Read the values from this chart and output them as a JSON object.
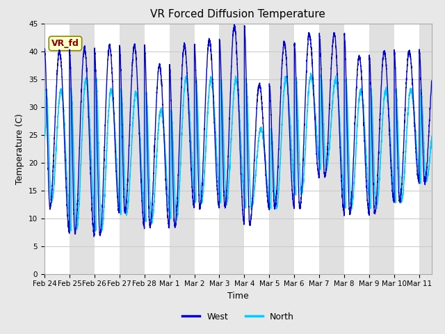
{
  "title": "VR Forced Diffusion Temperature",
  "xlabel": "Time",
  "ylabel": "Temperature (C)",
  "ylim": [
    0,
    45
  ],
  "yticks": [
    0,
    5,
    10,
    15,
    20,
    25,
    30,
    35,
    40,
    45
  ],
  "fig_bg_color": "#e8e8e8",
  "plot_bg_color": "#ffffff",
  "alt_band_color": "#e0e0e0",
  "grid_color": "#cccccc",
  "west_color": "#0000cc",
  "north_color": "#00ccff",
  "legend_label_west": "West",
  "legend_label_north": "North",
  "vr_fd_box_color": "#ffffcc",
  "vr_fd_text_color": "#8b0000",
  "tick_labels": [
    "Feb 24",
    "Feb 25",
    "Feb 26",
    "Feb 27",
    "Feb 28",
    "Mar 1",
    "Mar 2",
    "Mar 3",
    "Mar 4",
    "Mar 5",
    "Mar 6",
    "Mar 7",
    "Mar 8",
    "Mar 9",
    "Mar 10",
    "Mar 11"
  ],
  "num_days": 15.5,
  "west_peaks": [
    40,
    40.5,
    41,
    41,
    37.5,
    41,
    42,
    44.5,
    34,
    41.5,
    43,
    43,
    39,
    40,
    40,
    38
  ],
  "west_troughs": [
    12,
    7.5,
    7,
    11,
    8.5,
    8.5,
    12,
    12,
    9,
    12,
    12,
    17.5,
    11,
    11,
    13,
    16.5
  ],
  "north_peaks": [
    33,
    35,
    33,
    32.5,
    29.5,
    35,
    35,
    35,
    26,
    35,
    35.5,
    35,
    33,
    33,
    33,
    29
  ],
  "north_troughs": [
    13,
    8,
    8,
    11,
    9.5,
    10,
    13,
    13,
    12,
    12,
    14.5,
    19,
    12,
    12,
    13,
    17
  ],
  "trough_phase": 0.22,
  "peak_phase": 0.6
}
